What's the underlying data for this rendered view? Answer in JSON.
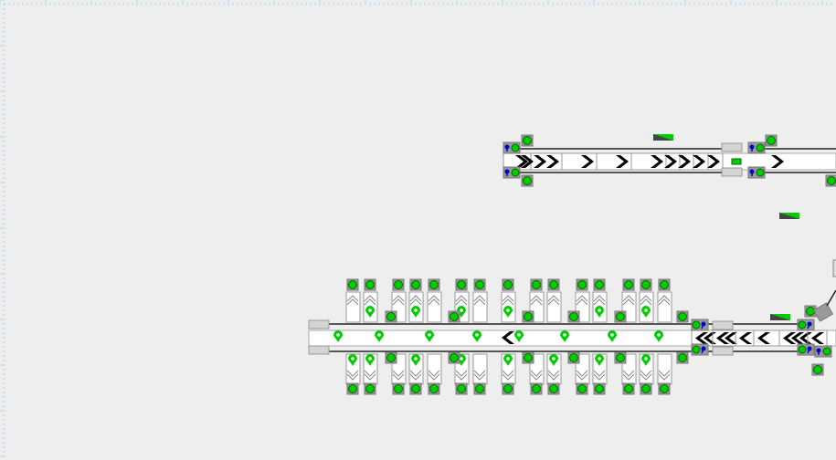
{
  "colors": {
    "background": "#eeeeee",
    "status_ok": "#00cc00",
    "belt": "#ffffff",
    "chevron": "#000000",
    "button_grey": "#d4d4d4",
    "motor_blue": "#0000cc",
    "ruler": "#a8d8f0"
  },
  "upper_conveyor": {
    "direction": "right",
    "segment_chevron_counts": [
      1,
      3,
      1,
      1,
      1,
      1,
      1,
      1,
      1
    ],
    "status": "running"
  },
  "lower_conveyor": {
    "direction": "left",
    "top_lanes": [
      {
        "occupied": false
      },
      {
        "occupied": true
      },
      {
        "occupied": false
      },
      {
        "occupied": true
      },
      {
        "occupied": false
      },
      {
        "occupied": true
      },
      {
        "occupied": false
      },
      {
        "occupied": true
      },
      {
        "occupied": false
      },
      {
        "occupied": false
      },
      {
        "occupied": false
      },
      {
        "occupied": true
      },
      {
        "occupied": false
      },
      {
        "occupied": true
      },
      {
        "occupied": false
      }
    ],
    "bottom_lanes": [
      {
        "occupied": true
      },
      {
        "occupied": true
      },
      {
        "occupied": false
      },
      {
        "occupied": true
      },
      {
        "occupied": false
      },
      {
        "occupied": true
      },
      {
        "occupied": false
      },
      {
        "occupied": true
      },
      {
        "occupied": false
      },
      {
        "occupied": true
      },
      {
        "occupied": false
      },
      {
        "occupied": true
      },
      {
        "occupied": false
      },
      {
        "occupied": true
      },
      {
        "occupied": false
      }
    ],
    "belt_items": 8
  },
  "return_conveyor": {
    "direction": "left",
    "segment_chevron_counts": [
      2,
      2,
      1,
      1,
      3,
      1
    ]
  }
}
